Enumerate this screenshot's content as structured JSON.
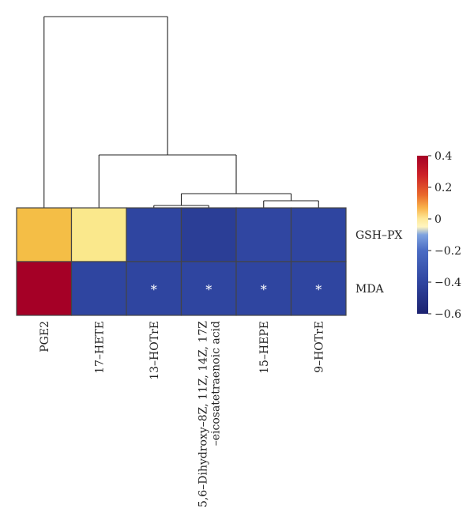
{
  "chart_data": {
    "type": "heatmap",
    "title": "",
    "xlabel": "",
    "ylabel": "",
    "columns": [
      "PGE2",
      "17–HETE",
      "13–HOTrE",
      "5,6–Dihydroxy–8Z, 11Z, 14Z, 17Z|–eicosatetraenoic acid",
      "15–HEPE",
      "9–HOTrE"
    ],
    "rows": [
      "GSH–PX",
      "MDA"
    ],
    "values": [
      [
        0.15,
        0.05,
        -0.5,
        -0.52,
        -0.48,
        -0.5
      ],
      [
        0.4,
        -0.5,
        -0.5,
        -0.5,
        -0.5,
        -0.5
      ]
    ],
    "significance": [
      [
        "",
        "",
        "",
        "",
        "",
        ""
      ],
      [
        "",
        "",
        "*",
        "*",
        "*",
        "*"
      ]
    ],
    "colorbar": {
      "range": [
        -0.6,
        0.4
      ],
      "ticks": [
        0.4,
        0.2,
        0,
        -0.2,
        -0.4,
        -0.6
      ],
      "tick_labels": [
        "0.4",
        "0.2",
        "0",
        "−0.2",
        "−0.4",
        "−0.6"
      ],
      "colors": [
        "#a50026",
        "#e0362a",
        "#f99b3c",
        "#fee08b",
        "#ffffbf",
        "#5b8fd6",
        "#2e4aa5",
        "#1e2a80"
      ]
    },
    "dendrogram": "((PGE2,(17-HETE,((13-HOTrE,5,6-Dihydroxy),(15-HEPE,9-HOTrE)))))"
  }
}
